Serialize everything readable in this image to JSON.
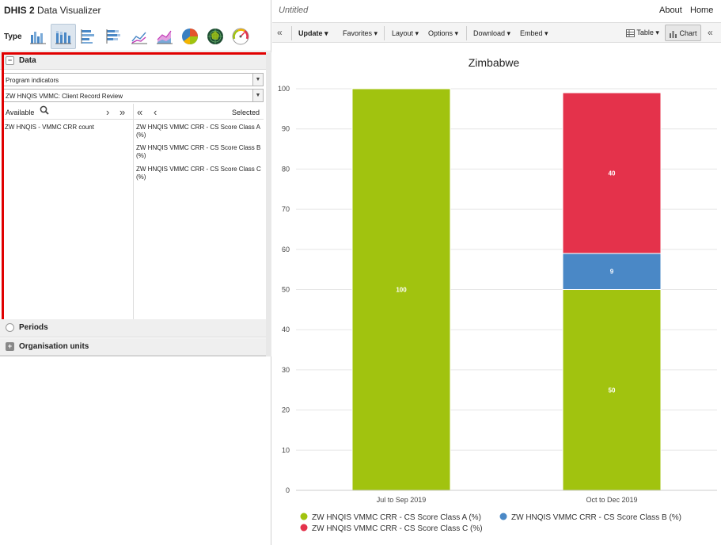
{
  "app": {
    "brand": "DHIS 2",
    "name": "Data Visualizer"
  },
  "type_bar": {
    "label": "Type",
    "icons": [
      "column-chart-icon",
      "stacked-column-chart-icon",
      "bar-chart-icon",
      "stacked-bar-chart-icon",
      "line-chart-icon",
      "area-chart-icon",
      "pie-chart-icon",
      "radar-chart-icon",
      "gauge-chart-icon"
    ]
  },
  "sections": {
    "data": "Data",
    "periods": "Periods",
    "org_units": "Organisation units"
  },
  "data_panel": {
    "data_type": "Program indicators",
    "program": "ZW HNQIS VMMC: Client Record Review",
    "available_label": "Available",
    "selected_label": "Selected",
    "available_items": [
      "ZW HNQIS - VMMC CRR count"
    ],
    "selected_items": [
      "ZW HNQIS VMMC CRR - CS Score Class A (%)",
      "ZW HNQIS VMMC CRR - CS Score Class B (%)",
      "ZW HNQIS VMMC CRR - CS Score Class C (%)"
    ]
  },
  "topbar": {
    "title": "Untitled",
    "about": "About",
    "home": "Home"
  },
  "toolbar": {
    "update": "Update",
    "favorites": "Favorites",
    "layout": "Layout",
    "options": "Options",
    "download": "Download",
    "embed": "Embed",
    "table": "Table",
    "chart": "Chart"
  },
  "colors": {
    "class_a": "#a1c30f",
    "class_b": "#4a88c6",
    "class_c": "#e4324b",
    "highlight": "#e00000"
  },
  "chart_data": {
    "type": "bar",
    "stacked": true,
    "title": "Zimbabwe",
    "categories": [
      "Jul to Sep 2019",
      "Oct to Dec 2019"
    ],
    "series": [
      {
        "name": "ZW HNQIS VMMC CRR - CS Score Class A (%)",
        "values": [
          100,
          50
        ],
        "color": "#a1c30f"
      },
      {
        "name": "ZW HNQIS VMMC CRR - CS Score Class B (%)",
        "values": [
          0,
          9
        ],
        "color": "#4a88c6"
      },
      {
        "name": "ZW HNQIS VMMC CRR - CS Score Class C (%)",
        "values": [
          0,
          40
        ],
        "color": "#e4324b"
      }
    ],
    "ylim": [
      0,
      100
    ],
    "yticks": [
      0,
      10,
      20,
      30,
      40,
      50,
      60,
      70,
      80,
      90,
      100
    ],
    "grid": true,
    "legend": "bottom"
  }
}
